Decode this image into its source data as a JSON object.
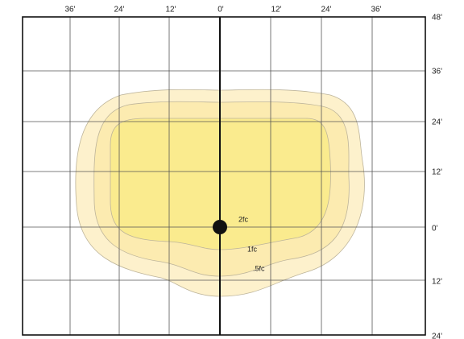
{
  "x_labels": [
    "36'",
    "24'",
    "12'",
    "0'",
    "12'",
    "24'",
    "36'"
  ],
  "y_labels": [
    "48'",
    "36'",
    "24'",
    "12'",
    "0'",
    "12'",
    "24'"
  ],
  "contour_labels": [
    "2fc",
    "1fc",
    ".5fc"
  ]
}
